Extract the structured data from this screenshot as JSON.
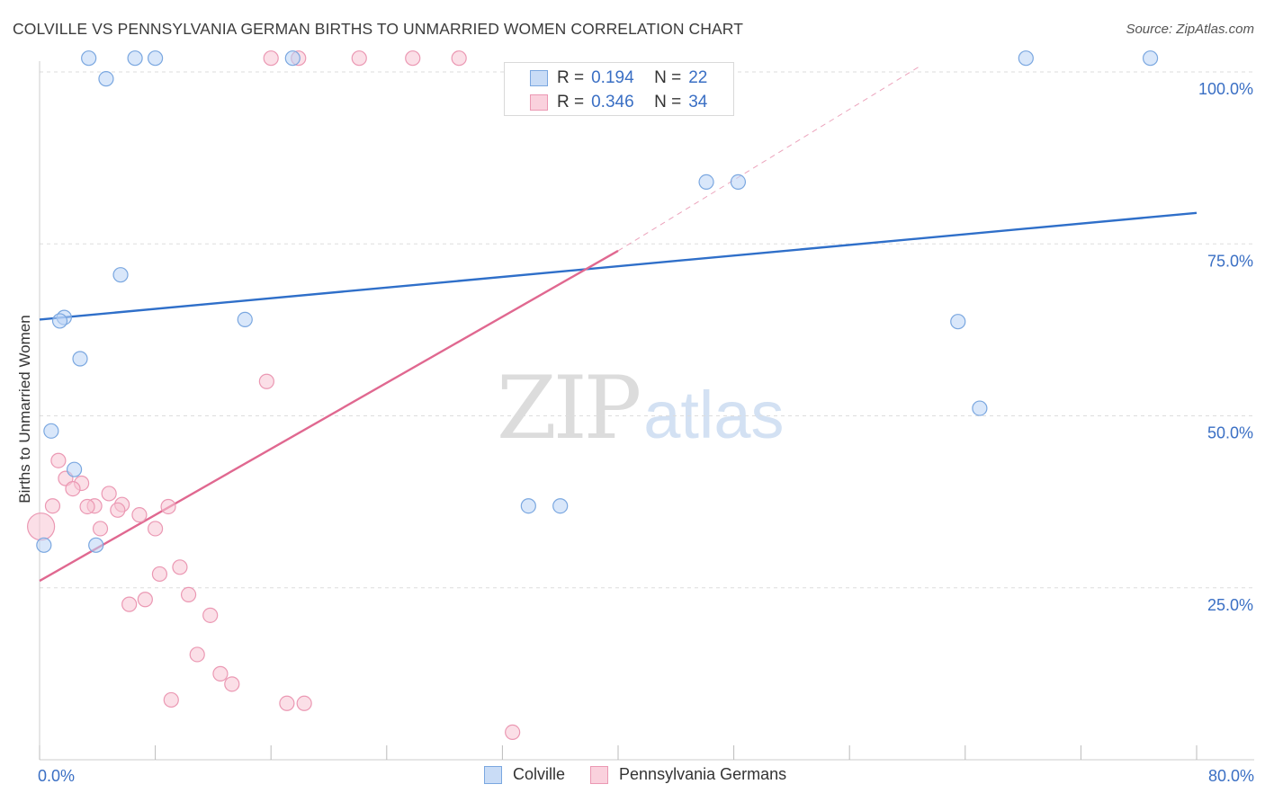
{
  "title": "COLVILLE VS PENNSYLVANIA GERMAN BIRTHS TO UNMARRIED WOMEN CORRELATION CHART",
  "source": "Source: ZipAtlas.com",
  "watermark": {
    "zip": "ZIP",
    "atlas": "atlas"
  },
  "colors": {
    "colville_fill": "#b9d3f5",
    "colville_stroke": "#7aa7e0",
    "colville_line": "#2f6fc9",
    "penn_fill": "#f7c4d3",
    "penn_stroke": "#eb98b3",
    "penn_line": "#e06890",
    "axis_label_blue": "#3a6fc4",
    "grid": "#dddddd"
  },
  "stats_legend": {
    "rows": [
      {
        "series": "Colville",
        "r_label": "R =",
        "r_value": "0.194",
        "n_label": "N =",
        "n_value": "22"
      },
      {
        "series": "Pennsylvania Germans",
        "r_label": "R =",
        "r_value": "0.346",
        "n_label": "N =",
        "n_value": "34"
      }
    ]
  },
  "bottom_legend": {
    "items": [
      {
        "label": "Colville"
      },
      {
        "label": "Pennsylvania Germans"
      }
    ]
  },
  "chart_data": {
    "type": "scatter",
    "title": "COLVILLE VS PENNSYLVANIA GERMAN BIRTHS TO UNMARRIED WOMEN CORRELATION CHART",
    "xlabel": "",
    "ylabel": "Births to Unmarried Women",
    "xlim": [
      0,
      80
    ],
    "ylim": [
      0,
      100
    ],
    "x_tick_labels": [
      {
        "value": 0,
        "label": "0.0%"
      },
      {
        "value": 80,
        "label": "80.0%"
      }
    ],
    "y_tick_labels": [
      {
        "value": 25,
        "label": "25.0%"
      },
      {
        "value": 50,
        "label": "50.0%"
      },
      {
        "value": 75,
        "label": "75.0%"
      },
      {
        "value": 100,
        "label": "100.0%"
      }
    ],
    "x_minor_ticks": [
      0,
      8,
      16,
      24,
      32,
      40,
      48,
      56,
      64,
      72,
      80
    ],
    "series": [
      {
        "name": "Colville",
        "r": 0.194,
        "n": 22,
        "trend": {
          "x0": 0,
          "y0": 64.0,
          "x1": 80,
          "y1": 79.5
        },
        "points": [
          {
            "x": 3.4,
            "y": 102.0
          },
          {
            "x": 6.6,
            "y": 102.0
          },
          {
            "x": 8.0,
            "y": 102.0
          },
          {
            "x": 17.5,
            "y": 102.0
          },
          {
            "x": 68.2,
            "y": 102.0
          },
          {
            "x": 76.8,
            "y": 102.0
          },
          {
            "x": 4.6,
            "y": 99.0
          },
          {
            "x": 46.1,
            "y": 84.0
          },
          {
            "x": 48.3,
            "y": 84.0
          },
          {
            "x": 5.6,
            "y": 70.5
          },
          {
            "x": 1.7,
            "y": 64.3
          },
          {
            "x": 1.4,
            "y": 63.8
          },
          {
            "x": 14.2,
            "y": 64.0
          },
          {
            "x": 63.5,
            "y": 63.7
          },
          {
            "x": 2.8,
            "y": 58.3
          },
          {
            "x": 65.0,
            "y": 51.1
          },
          {
            "x": 0.8,
            "y": 47.8
          },
          {
            "x": 2.4,
            "y": 42.2
          },
          {
            "x": 33.8,
            "y": 36.9
          },
          {
            "x": 36.0,
            "y": 36.9
          },
          {
            "x": 0.3,
            "y": 31.2
          },
          {
            "x": 3.9,
            "y": 31.2
          }
        ]
      },
      {
        "name": "Pennsylvania Germans",
        "r": 0.346,
        "n": 34,
        "trend": {
          "x0": 0,
          "y0": 26.0,
          "x1": 40,
          "y1": 74.0
        },
        "trend_extension": {
          "x0": 40,
          "y0": 74.0,
          "x1": 61,
          "y1": 101.0
        },
        "points": [
          {
            "x": 16.0,
            "y": 102.0
          },
          {
            "x": 17.9,
            "y": 102.0
          },
          {
            "x": 22.1,
            "y": 102.0
          },
          {
            "x": 25.8,
            "y": 102.0
          },
          {
            "x": 29.0,
            "y": 102.0
          },
          {
            "x": 15.7,
            "y": 55.0
          },
          {
            "x": 1.3,
            "y": 43.5
          },
          {
            "x": 1.8,
            "y": 40.9
          },
          {
            "x": 2.9,
            "y": 40.2
          },
          {
            "x": 2.3,
            "y": 39.4
          },
          {
            "x": 4.8,
            "y": 38.7
          },
          {
            "x": 5.7,
            "y": 37.1
          },
          {
            "x": 3.8,
            "y": 36.9
          },
          {
            "x": 0.9,
            "y": 36.9
          },
          {
            "x": 3.3,
            "y": 36.8
          },
          {
            "x": 8.9,
            "y": 36.8
          },
          {
            "x": 5.4,
            "y": 36.3
          },
          {
            "x": 6.9,
            "y": 35.6
          },
          {
            "x": 4.2,
            "y": 33.6
          },
          {
            "x": 8.0,
            "y": 33.6
          },
          {
            "x": 0.1,
            "y": 33.9,
            "r": 15
          },
          {
            "x": 9.7,
            "y": 28.0
          },
          {
            "x": 8.3,
            "y": 27.0
          },
          {
            "x": 10.3,
            "y": 24.0
          },
          {
            "x": 7.3,
            "y": 23.3
          },
          {
            "x": 6.2,
            "y": 22.6
          },
          {
            "x": 11.8,
            "y": 21.0
          },
          {
            "x": 10.9,
            "y": 15.3
          },
          {
            "x": 12.5,
            "y": 12.5
          },
          {
            "x": 13.3,
            "y": 11.0
          },
          {
            "x": 9.1,
            "y": 8.7
          },
          {
            "x": 17.1,
            "y": 8.2
          },
          {
            "x": 18.3,
            "y": 8.2
          },
          {
            "x": 32.7,
            "y": 4.0
          }
        ]
      }
    ]
  }
}
